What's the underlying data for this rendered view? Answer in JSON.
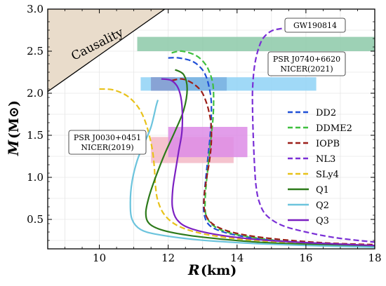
{
  "chart_data": {
    "type": "line",
    "xlabel": "R",
    "xunit": "(km)",
    "ylabel": "M",
    "yunit": "(M⊙)",
    "xlim": [
      8.5,
      18
    ],
    "ylim": [
      0.15,
      3.0
    ],
    "xticks": [
      "10",
      "12",
      "14",
      "16",
      "18"
    ],
    "yticks": [
      "0.5",
      "1.0",
      "1.5",
      "2.0",
      "2.5",
      "3.0"
    ],
    "grid": true,
    "legend_position": "right",
    "annotations": {
      "causality": "Causality",
      "gw": "GW190814",
      "psr2021_line1": "PSR J0740+6620",
      "psr2021_line2": "NICER(2021)",
      "psr2019_line1": "PSR J0030+0451",
      "psr2019_line2": "NICER(2019)"
    },
    "bands": [
      {
        "label": "GW190814",
        "x": [
          11.1,
          18.0
        ],
        "y": [
          2.5,
          2.67
        ],
        "color": "#8cc9a8"
      },
      {
        "label": "NICER(2021) wide",
        "x": [
          11.2,
          16.3
        ],
        "y": [
          2.03,
          2.19
        ],
        "color": "#8fd2f6"
      },
      {
        "label": "NICER(2021) inner",
        "x": [
          11.5,
          13.7
        ],
        "y": [
          2.03,
          2.19
        ],
        "color": "#7ab0e0"
      },
      {
        "label": "NICER(2021) core",
        "x": [
          11.5,
          12.2
        ],
        "y": [
          2.03,
          2.19
        ],
        "color": "#8aa0d2"
      },
      {
        "label": "NICER(2019) a",
        "x": [
          11.5,
          13.9
        ],
        "y": [
          1.17,
          1.48
        ],
        "color": "#f3b8c6"
      },
      {
        "label": "NICER(2019) b",
        "x": [
          12.0,
          14.3
        ],
        "y": [
          1.24,
          1.6
        ],
        "color": "#dd8ce6"
      }
    ],
    "series": [
      {
        "name": "DD2",
        "color": "#1f4fd6",
        "dash": true,
        "points": [
          [
            12.0,
            2.42
          ],
          [
            12.3,
            2.42
          ],
          [
            12.7,
            2.38
          ],
          [
            12.95,
            2.3
          ],
          [
            13.1,
            2.2
          ],
          [
            13.2,
            2.05
          ],
          [
            13.25,
            1.9
          ],
          [
            13.25,
            1.7
          ],
          [
            13.22,
            1.5
          ],
          [
            13.17,
            1.3
          ],
          [
            13.12,
            1.1
          ],
          [
            13.07,
            0.9
          ],
          [
            13.03,
            0.7
          ],
          [
            13.05,
            0.55
          ],
          [
            13.2,
            0.43
          ],
          [
            13.6,
            0.35
          ],
          [
            14.3,
            0.29
          ],
          [
            15.3,
            0.24
          ],
          [
            16.5,
            0.21
          ],
          [
            18.0,
            0.19
          ]
        ]
      },
      {
        "name": "DDME2",
        "color": "#3fbf3f",
        "dash": true,
        "points": [
          [
            12.1,
            2.48
          ],
          [
            12.4,
            2.5
          ],
          [
            12.8,
            2.45
          ],
          [
            13.05,
            2.36
          ],
          [
            13.2,
            2.25
          ],
          [
            13.3,
            2.1
          ],
          [
            13.32,
            1.9
          ],
          [
            13.3,
            1.7
          ],
          [
            13.25,
            1.5
          ],
          [
            13.2,
            1.3
          ],
          [
            13.15,
            1.1
          ],
          [
            13.1,
            0.9
          ],
          [
            13.07,
            0.7
          ],
          [
            13.1,
            0.55
          ],
          [
            13.3,
            0.43
          ],
          [
            13.7,
            0.35
          ],
          [
            14.4,
            0.29
          ],
          [
            15.4,
            0.24
          ],
          [
            16.6,
            0.21
          ],
          [
            18.0,
            0.19
          ]
        ]
      },
      {
        "name": "IOPB",
        "color": "#9c1f1a",
        "dash": true,
        "points": [
          [
            12.1,
            2.15
          ],
          [
            12.4,
            2.17
          ],
          [
            12.7,
            2.12
          ],
          [
            12.95,
            2.03
          ],
          [
            13.1,
            1.9
          ],
          [
            13.2,
            1.75
          ],
          [
            13.25,
            1.6
          ],
          [
            13.25,
            1.4
          ],
          [
            13.2,
            1.2
          ],
          [
            13.12,
            1.0
          ],
          [
            13.05,
            0.8
          ],
          [
            13.05,
            0.62
          ],
          [
            13.2,
            0.48
          ],
          [
            13.6,
            0.38
          ],
          [
            14.3,
            0.31
          ],
          [
            15.3,
            0.26
          ],
          [
            16.6,
            0.22
          ],
          [
            18.0,
            0.2
          ]
        ]
      },
      {
        "name": "NL3",
        "color": "#7a2fd6",
        "dash": true,
        "points": [
          [
            15.3,
            2.77
          ],
          [
            15.0,
            2.74
          ],
          [
            14.75,
            2.65
          ],
          [
            14.6,
            2.5
          ],
          [
            14.5,
            2.3
          ],
          [
            14.45,
            2.05
          ],
          [
            14.45,
            1.8
          ],
          [
            14.47,
            1.5
          ],
          [
            14.5,
            1.2
          ],
          [
            14.55,
            0.9
          ],
          [
            14.65,
            0.7
          ],
          [
            14.85,
            0.55
          ],
          [
            15.3,
            0.43
          ],
          [
            16.0,
            0.35
          ],
          [
            16.9,
            0.28
          ],
          [
            18.0,
            0.23
          ]
        ]
      },
      {
        "name": "SLy4",
        "color": "#e8c21a",
        "dash": true,
        "points": [
          [
            10.0,
            2.05
          ],
          [
            10.4,
            2.04
          ],
          [
            10.8,
            1.97
          ],
          [
            11.1,
            1.85
          ],
          [
            11.3,
            1.7
          ],
          [
            11.45,
            1.5
          ],
          [
            11.55,
            1.3
          ],
          [
            11.6,
            1.1
          ],
          [
            11.63,
            0.9
          ],
          [
            11.7,
            0.72
          ],
          [
            11.9,
            0.55
          ],
          [
            12.3,
            0.42
          ],
          [
            13.0,
            0.33
          ],
          [
            14.0,
            0.27
          ],
          [
            15.3,
            0.23
          ],
          [
            16.7,
            0.21
          ],
          [
            18.0,
            0.19
          ]
        ]
      },
      {
        "name": "Q1",
        "color": "#2d7a1a",
        "dash": false,
        "points": [
          [
            12.2,
            2.28
          ],
          [
            12.45,
            2.22
          ],
          [
            12.55,
            2.05
          ],
          [
            12.45,
            1.8
          ],
          [
            12.2,
            1.55
          ],
          [
            11.9,
            1.28
          ],
          [
            11.65,
            1.02
          ],
          [
            11.45,
            0.78
          ],
          [
            11.35,
            0.58
          ],
          [
            11.45,
            0.45
          ],
          [
            11.85,
            0.37
          ],
          [
            12.6,
            0.31
          ],
          [
            13.7,
            0.26
          ],
          [
            15.0,
            0.22
          ],
          [
            16.5,
            0.2
          ],
          [
            18.0,
            0.18
          ]
        ]
      },
      {
        "name": "Q2",
        "color": "#6cc4dd",
        "dash": false,
        "points": [
          [
            11.7,
            1.92
          ],
          [
            11.65,
            1.85
          ],
          [
            11.5,
            1.6
          ],
          [
            11.3,
            1.4
          ],
          [
            11.1,
            1.2
          ],
          [
            10.95,
            0.95
          ],
          [
            10.9,
            0.7
          ],
          [
            10.95,
            0.5
          ],
          [
            11.2,
            0.38
          ],
          [
            11.7,
            0.32
          ],
          [
            12.8,
            0.26
          ],
          [
            14.2,
            0.22
          ],
          [
            16.0,
            0.19
          ],
          [
            18.0,
            0.17
          ]
        ]
      },
      {
        "name": "Q3",
        "color": "#7c20c2",
        "dash": false,
        "points": [
          [
            11.8,
            2.17
          ],
          [
            12.1,
            2.15
          ],
          [
            12.3,
            2.05
          ],
          [
            12.4,
            1.85
          ],
          [
            12.4,
            1.55
          ],
          [
            12.3,
            1.3
          ],
          [
            12.2,
            1.05
          ],
          [
            12.13,
            0.85
          ],
          [
            12.12,
            0.65
          ],
          [
            12.25,
            0.5
          ],
          [
            12.6,
            0.4
          ],
          [
            13.4,
            0.32
          ],
          [
            14.6,
            0.26
          ],
          [
            16.2,
            0.22
          ],
          [
            18.0,
            0.19
          ]
        ]
      }
    ]
  }
}
